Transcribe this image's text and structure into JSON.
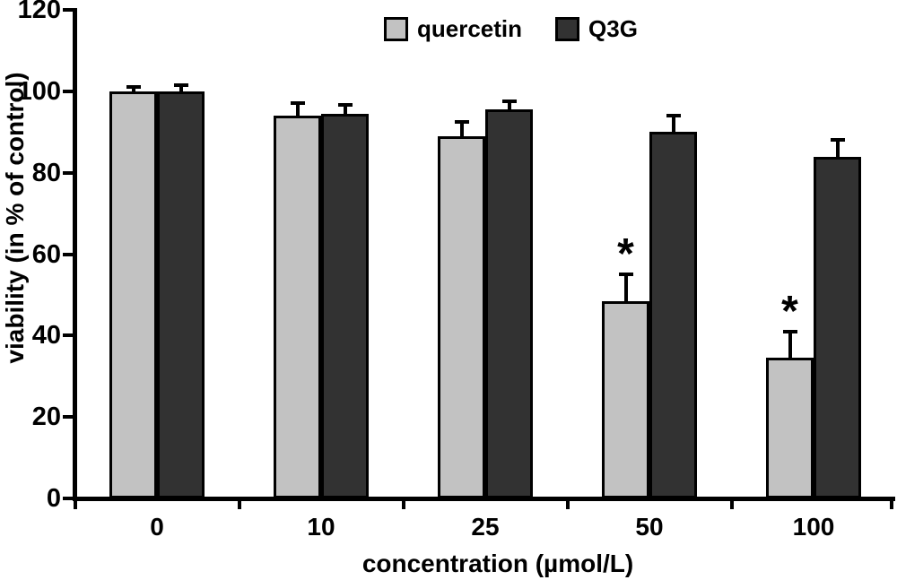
{
  "chart_data": {
    "type": "bar",
    "title": "",
    "xlabel": "concentration (µmol/L)",
    "ylabel": "viability (in % of control)",
    "categories": [
      "0",
      "10",
      "25",
      "50",
      "100"
    ],
    "series": [
      {
        "name": "quercetin",
        "color": "#c2c2c2",
        "values": [
          100,
          94,
          89,
          48.5,
          34.5
        ],
        "errors": [
          1.5,
          3.5,
          4,
          7,
          7
        ],
        "significance": [
          "",
          "",
          "",
          "*",
          "*"
        ]
      },
      {
        "name": "Q3G",
        "color": "#323232",
        "values": [
          100,
          94.5,
          95.5,
          90,
          84
        ],
        "errors": [
          2,
          2.5,
          2.5,
          4.5,
          4.5
        ],
        "significance": [
          "",
          "",
          "",
          "",
          ""
        ]
      }
    ],
    "ylim": [
      0,
      120
    ],
    "y_ticks": [
      0,
      20,
      40,
      60,
      80,
      100,
      120
    ],
    "legend_position": "top-center",
    "grid": false,
    "background_color": "#ffffff",
    "axis_color": "#000000",
    "bar_border_color": "#000000",
    "error_bar_color": "#000000",
    "significance_marker": "*"
  }
}
